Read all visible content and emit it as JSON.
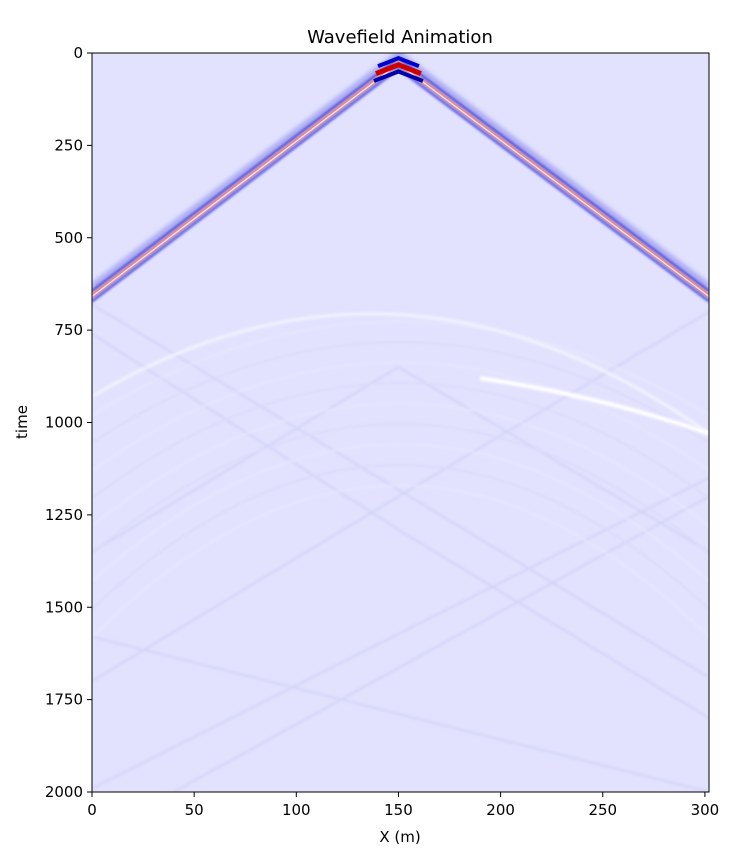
{
  "chart_data": {
    "type": "heatmap",
    "title": "Wavefield Animation",
    "xlabel": "X (m)",
    "ylabel": "time",
    "xlim": [
      0,
      302
    ],
    "ylim": [
      2000,
      0
    ],
    "y_inverted": true,
    "xticks": [
      0,
      50,
      100,
      150,
      200,
      250,
      300
    ],
    "yticks": [
      0,
      250,
      500,
      750,
      1000,
      1250,
      1500,
      1750,
      2000
    ],
    "colormap": "seismic",
    "colors": {
      "background": "#e2e2ff",
      "positive": "#cc0000",
      "negative": "#0000cc",
      "faint": "#ffffff"
    },
    "features": {
      "source": {
        "x": 150,
        "t": 20
      },
      "direct_wave_arrival_at_edges": {
        "x_left": 0,
        "x_right": 302,
        "t": 650
      },
      "reflection_apex": {
        "x": 150,
        "t": 670
      },
      "reflection_at_right_edge": {
        "x": 302,
        "t": 1030
      },
      "reflection_at_left_edge": {
        "x": 0,
        "t": 930
      }
    }
  }
}
